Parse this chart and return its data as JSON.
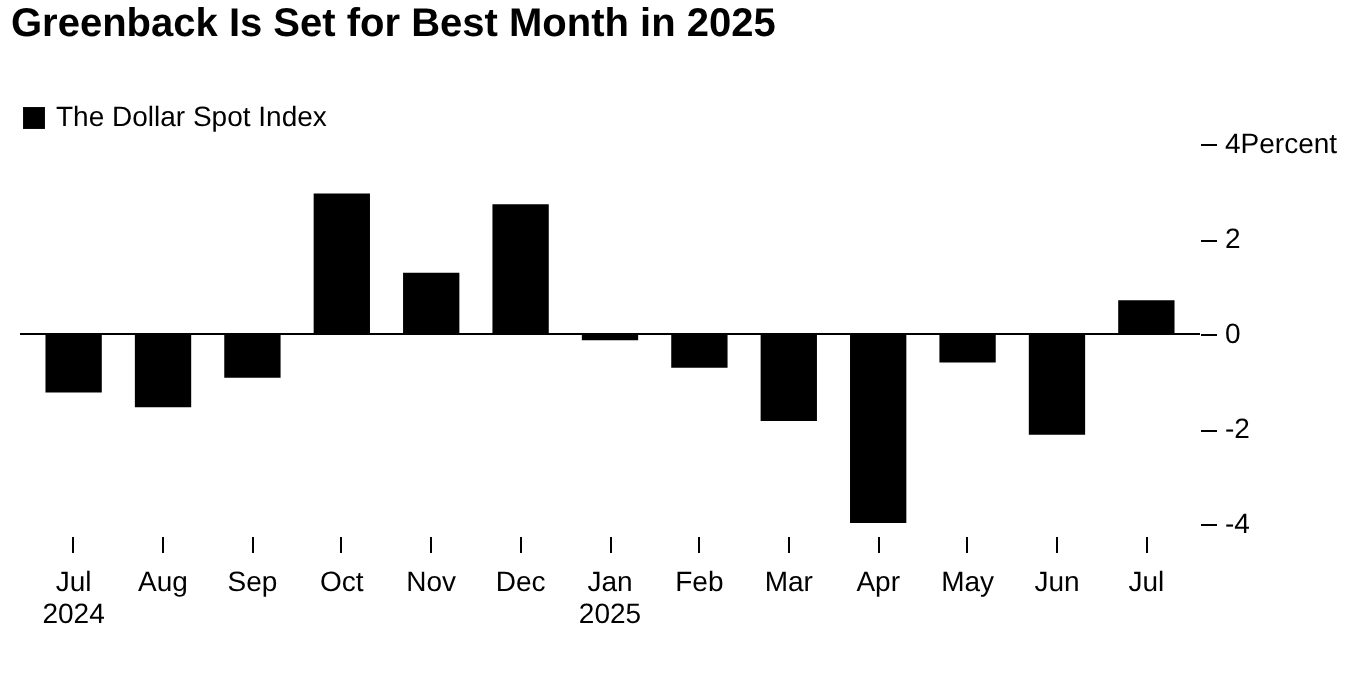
{
  "chart_data": {
    "type": "bar",
    "title": "Greenback Is Set for Best Month in 2025",
    "categories": [
      "Jul\n2024",
      "Aug",
      "Sep",
      "Oct",
      "Nov",
      "Dec",
      "Jan\n2025",
      "Feb",
      "Mar",
      "Apr",
      "May",
      "Jun",
      "Jul"
    ],
    "series": [
      {
        "name": "The Dollar Spot Index",
        "color": "#000000",
        "values": [
          -1.23,
          -1.54,
          -0.92,
          2.96,
          1.29,
          2.73,
          -0.13,
          -0.71,
          -1.83,
          -3.98,
          -0.6,
          -2.12,
          0.71
        ]
      }
    ],
    "ylim": [
      -4,
      4
    ],
    "yticks": [
      {
        "value": 4,
        "label": "4Percent"
      },
      2,
      0,
      -2,
      -4
    ],
    "ref_lines": [
      {
        "axis": "y",
        "value": 0,
        "color": "#000000"
      }
    ],
    "grid": false,
    "legend": "top left"
  }
}
